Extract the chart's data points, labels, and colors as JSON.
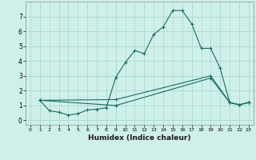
{
  "xlabel": "Humidex (Indice chaleur)",
  "ylabel": "",
  "bg_color": "#cff0ea",
  "grid_color": "#aad8d0",
  "line_color": "#1a6b60",
  "xlim": [
    -0.5,
    23.5
  ],
  "ylim": [
    -0.3,
    8.0
  ],
  "xticks": [
    0,
    1,
    2,
    3,
    4,
    5,
    6,
    7,
    8,
    9,
    10,
    11,
    12,
    13,
    14,
    15,
    16,
    17,
    18,
    19,
    20,
    21,
    22,
    23
  ],
  "yticks": [
    0,
    1,
    2,
    3,
    4,
    5,
    6,
    7
  ],
  "series1_x": [
    1,
    2,
    3,
    4,
    5,
    6,
    7,
    8,
    9,
    10,
    11,
    12,
    13,
    14,
    15,
    16,
    17,
    18,
    19,
    20,
    21,
    22,
    23
  ],
  "series1_y": [
    1.35,
    0.65,
    0.55,
    0.35,
    0.45,
    0.7,
    0.75,
    0.85,
    2.9,
    3.9,
    4.7,
    4.5,
    5.8,
    6.3,
    7.4,
    7.4,
    6.5,
    4.85,
    4.85,
    3.5,
    1.2,
    1.05,
    1.2
  ],
  "series2_x": [
    1,
    9,
    19,
    21,
    22,
    23
  ],
  "series2_y": [
    1.35,
    1.4,
    3.0,
    1.2,
    1.05,
    1.2
  ],
  "series3_x": [
    1,
    9,
    19,
    21,
    22,
    23
  ],
  "series3_y": [
    1.35,
    1.0,
    2.85,
    1.2,
    1.05,
    1.2
  ]
}
